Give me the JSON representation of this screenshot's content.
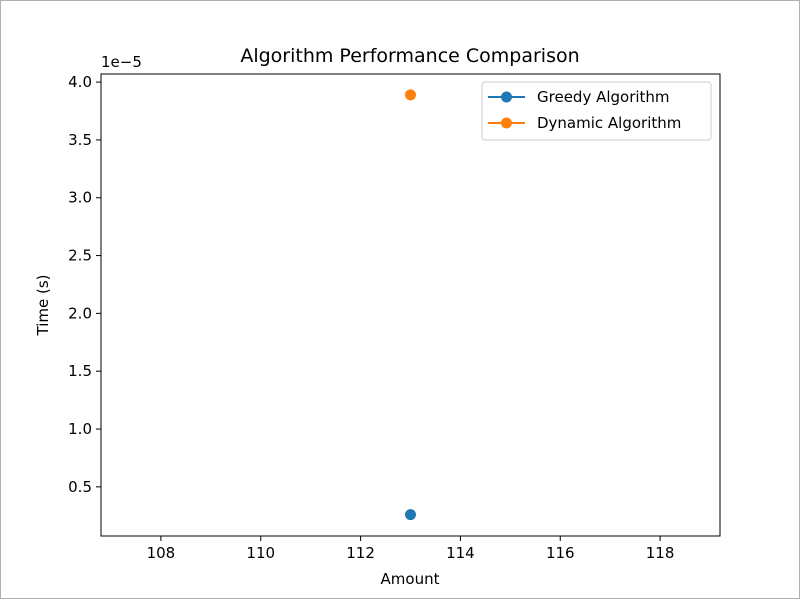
{
  "chart_data": {
    "type": "line",
    "title": "Algorithm Performance Comparison",
    "xlabel": "Amount",
    "ylabel": "Time (s)",
    "offset_label": "1e−5",
    "xlim": [
      106.8,
      119.2
    ],
    "ylim": [
      7.5e-07,
      4.07e-05
    ],
    "xticks": [
      108,
      110,
      112,
      114,
      116,
      118
    ],
    "xtick_labels": [
      "108",
      "110",
      "112",
      "114",
      "116",
      "118"
    ],
    "yticks": [
      5e-06,
      1e-05,
      1.5e-05,
      2e-05,
      2.5e-05,
      3e-05,
      3.5e-05,
      4e-05
    ],
    "ytick_labels": [
      "0.5",
      "1.0",
      "1.5",
      "2.0",
      "2.5",
      "3.0",
      "3.5",
      "4.0"
    ],
    "grid": false,
    "legend_position": "top-right",
    "series": [
      {
        "name": "Greedy Algorithm",
        "color": "#1f77b4",
        "x": [
          113
        ],
        "y": [
          2.6e-06
        ]
      },
      {
        "name": "Dynamic Algorithm",
        "color": "#ff7f0e",
        "x": [
          113
        ],
        "y": [
          3.89e-05
        ]
      }
    ]
  }
}
